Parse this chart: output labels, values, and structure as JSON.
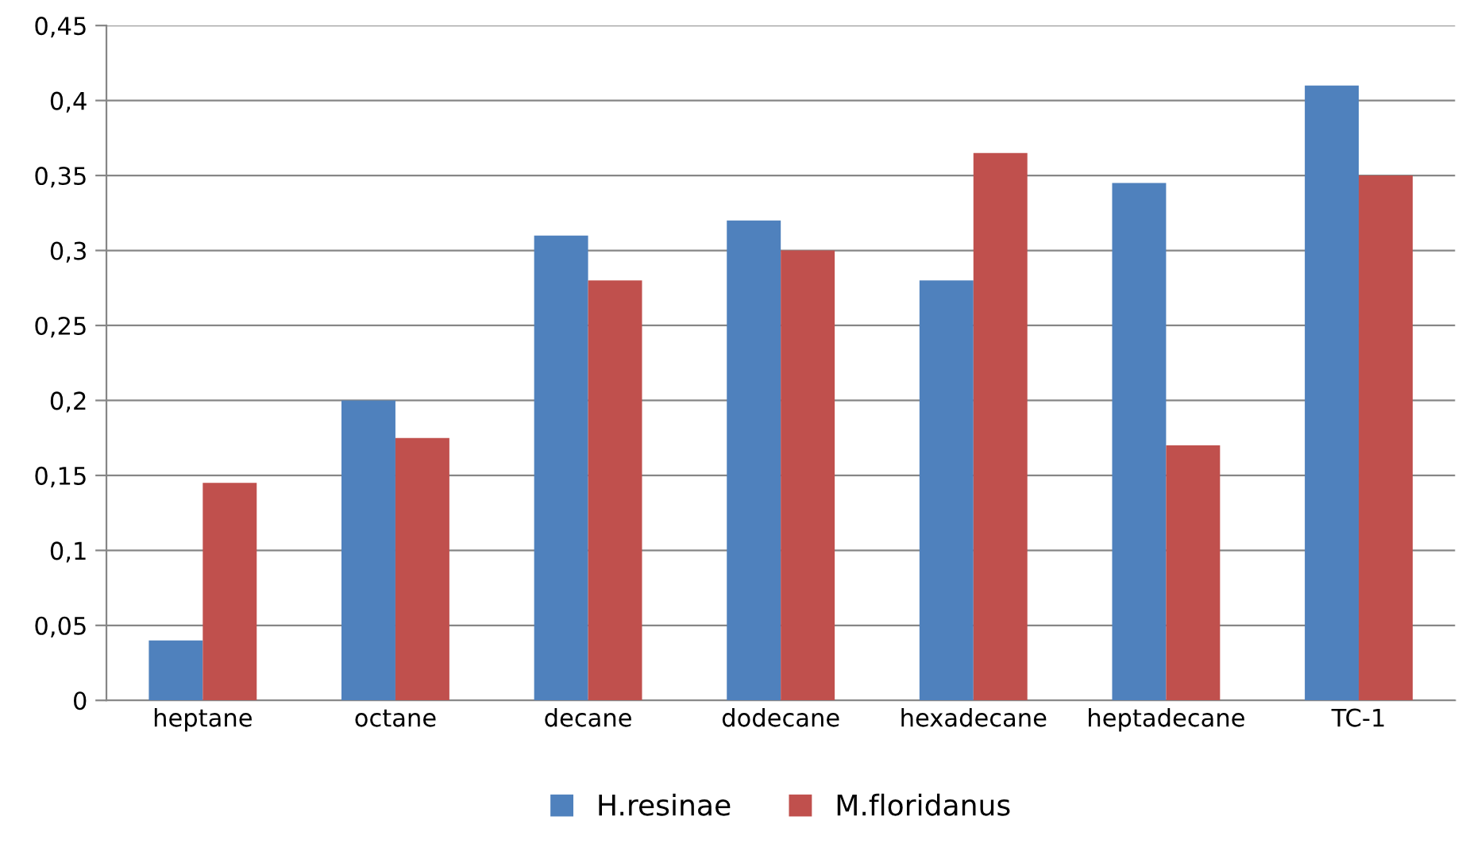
{
  "chart_data": {
    "type": "bar",
    "categories": [
      "heptane",
      "octane",
      "decane",
      "dodecane",
      "hexadecane",
      "heptadecane",
      "TC-1"
    ],
    "series": [
      {
        "name": "H.resinae",
        "color": "#4f81bd",
        "values": [
          0.04,
          0.2,
          0.31,
          0.32,
          0.28,
          0.345,
          0.41
        ]
      },
      {
        "name": "M.floridanus",
        "color": "#c0504d",
        "values": [
          0.145,
          0.175,
          0.28,
          0.3,
          0.365,
          0.17,
          0.35
        ]
      }
    ],
    "ylim": [
      0,
      0.45
    ],
    "yticks": [
      0,
      {
        "value": 0.05,
        "label": "0,05"
      },
      {
        "value": 0.1,
        "label": "0,1"
      },
      {
        "value": 0.15,
        "label": "0,15"
      },
      {
        "value": 0.2,
        "label": "0,2"
      },
      {
        "value": 0.25,
        "label": "0,25"
      },
      {
        "value": 0.3,
        "label": "0,3"
      },
      {
        "value": 0.35,
        "label": "0,35"
      },
      {
        "value": 0.4,
        "label": "0,4"
      },
      {
        "value": 0.45,
        "label": "0,45"
      }
    ],
    "grid": "y",
    "legend": "bottom"
  }
}
